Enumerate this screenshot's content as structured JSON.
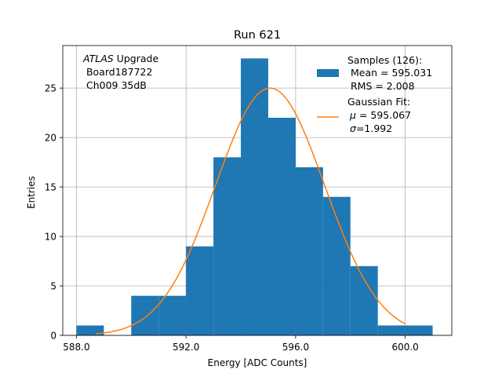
{
  "chart_data": {
    "type": "bar",
    "title": "Run 621",
    "xlabel": "Energy [ADC Counts]",
    "ylabel": "Entries",
    "xlim": [
      87.5,
      101.7
    ],
    "ylim": [
      0,
      29.3
    ],
    "xticks": [
      88,
      92,
      96,
      100
    ],
    "xtick_labels": [
      "588.0",
      "592.0",
      "596.0",
      "600.0"
    ],
    "yticks": [
      0,
      5,
      10,
      15,
      20,
      25
    ],
    "grid": true,
    "legend_position": "top-right",
    "annotation": {
      "italic": "ATLAS",
      "rest": " Upgrade",
      "line2": " Board187722",
      "line3": " Ch009 35dB"
    },
    "histogram": {
      "name_lines": [
        "Samples (126):",
        " Mean = 595.031",
        " RMS = 2.008"
      ],
      "color": "#1f77b4",
      "bin_edges": [
        88,
        89,
        90,
        91,
        92,
        93,
        94,
        95,
        96,
        97,
        98,
        99,
        100,
        101
      ],
      "counts": [
        1,
        0,
        4,
        4,
        9,
        18,
        28,
        22,
        17,
        14,
        7,
        1,
        1
      ]
    },
    "fit": {
      "name_line1": "Gaussian Fit:",
      "mu_symbol": "μ",
      "mu_text": " = 595.067",
      "sigma_symbol": "σ",
      "sigma_text": "=1.992",
      "color": "#ff7f0e",
      "mu": 95.067,
      "sigma": 1.992,
      "amplitude": 25.0,
      "x_range": [
        88.7,
        100.0
      ]
    }
  }
}
